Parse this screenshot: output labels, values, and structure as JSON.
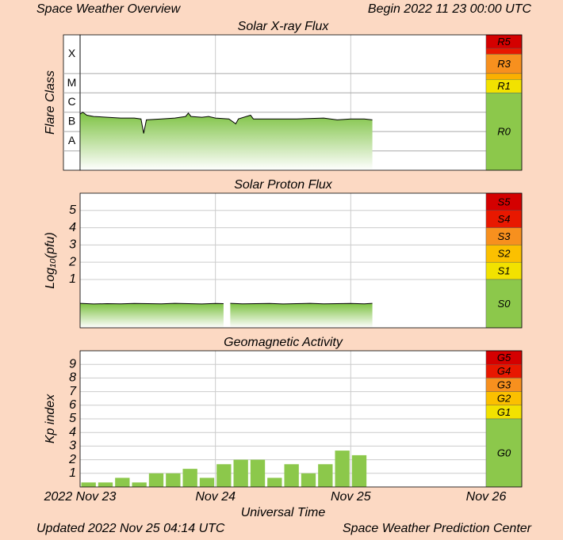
{
  "header": {
    "title": "Space Weather Overview",
    "begin": "Begin 2022 11 23 00:00 UTC"
  },
  "footer": {
    "updated": "Updated 2022 Nov 25 04:14 UTC",
    "source": "Space Weather Prediction Center"
  },
  "chart_data": [
    {
      "type": "line",
      "title": "Solar X-ray Flux",
      "ylabel": "Flare Class",
      "log_scale": true,
      "ylim": [
        1e-09,
        0.01
      ],
      "xlim": [
        0,
        3
      ],
      "color": "#000000",
      "fill_color": "#7dc242",
      "flare_classes": [
        {
          "label": "A",
          "from": 1e-08,
          "to": 1e-07
        },
        {
          "label": "B",
          "from": 1e-07,
          "to": 1e-06
        },
        {
          "label": "C",
          "from": 1e-06,
          "to": 1e-05
        },
        {
          "label": "M",
          "from": 1e-05,
          "to": 0.0001
        },
        {
          "label": "X",
          "from": 0.0001,
          "to": 0.01
        }
      ],
      "scale": [
        {
          "label": "R5",
          "from": 0.002,
          "to": 0.01,
          "color": "#d40000"
        },
        {
          "from": 0.001,
          "to": 0.002,
          "color": "#e81800"
        },
        {
          "label": "R3",
          "from": 0.0001,
          "to": 0.001,
          "color": "#f7901e"
        },
        {
          "from": 5e-05,
          "to": 0.0001,
          "color": "#fbb000"
        },
        {
          "label": "R1",
          "from": 1e-05,
          "to": 5e-05,
          "color": "#f2e200"
        },
        {
          "label": "R0",
          "from": 1e-09,
          "to": 1e-05,
          "color": "#8cc84b"
        }
      ],
      "x": [
        0,
        0.02,
        0.05,
        0.1,
        0.2,
        0.3,
        0.4,
        0.45,
        0.47,
        0.49,
        0.6,
        0.7,
        0.78,
        0.8,
        0.82,
        0.9,
        0.95,
        1.0,
        1.1,
        1.15,
        1.17,
        1.26,
        1.28,
        1.4,
        1.6,
        1.8,
        1.9,
        2.0,
        2.1,
        2.16
      ],
      "values": [
        8e-07,
        1e-06,
        7e-07,
        6e-07,
        5.5e-07,
        5e-07,
        5e-07,
        4.5e-07,
        8e-08,
        4e-07,
        4.5e-07,
        5e-07,
        6e-07,
        9e-07,
        6e-07,
        5.5e-07,
        6e-07,
        5e-07,
        4.5e-07,
        2.5e-07,
        4.5e-07,
        7e-07,
        4.5e-07,
        4.5e-07,
        4.5e-07,
        5e-07,
        4e-07,
        4.5e-07,
        4.5e-07,
        4e-07
      ]
    },
    {
      "type": "line",
      "title": "Solar Proton Flux",
      "ylabel": "Log₁₀(pfu)",
      "ylim": [
        -1.8,
        6
      ],
      "yticks": [
        1,
        2,
        3,
        4,
        5
      ],
      "xlim": [
        0,
        3
      ],
      "color": "#000000",
      "fill_color": "#7dc242",
      "scale": [
        {
          "label": "S5",
          "from": 5,
          "to": 6,
          "color": "#d40000"
        },
        {
          "label": "S4",
          "from": 4,
          "to": 5,
          "color": "#e81800"
        },
        {
          "label": "S3",
          "from": 3,
          "to": 4,
          "color": "#f7901e"
        },
        {
          "label": "S2",
          "from": 2,
          "to": 3,
          "color": "#fbc000"
        },
        {
          "label": "S1",
          "from": 1,
          "to": 2,
          "color": "#f2e200"
        },
        {
          "label": "S0",
          "from": -1.8,
          "to": 1,
          "color": "#8cc84b"
        }
      ],
      "x": [
        0,
        0.1,
        0.2,
        0.3,
        0.4,
        0.5,
        0.6,
        0.7,
        0.8,
        0.9,
        1.0,
        1.06,
        1.08,
        1.11,
        1.2,
        1.3,
        1.4,
        1.5,
        1.6,
        1.7,
        1.8,
        1.9,
        2.0,
        2.1,
        2.16
      ],
      "values": [
        -0.38,
        -0.42,
        -0.4,
        -0.41,
        -0.39,
        -0.4,
        -0.41,
        -0.38,
        -0.4,
        -0.42,
        -0.39,
        -0.4,
        null,
        -0.38,
        -0.41,
        -0.4,
        -0.39,
        -0.42,
        -0.4,
        -0.38,
        -0.41,
        -0.4,
        -0.39,
        -0.41,
        -0.38
      ]
    },
    {
      "type": "histogram",
      "title": "Geomagnetic Activity",
      "ylabel": "Kp index",
      "xlabel": "Universal Time",
      "ylim": [
        0,
        10
      ],
      "yticks": [
        1,
        2,
        3,
        4,
        5,
        6,
        7,
        8,
        9
      ],
      "xlim": [
        0,
        3
      ],
      "xticks": [
        {
          "value": 0,
          "label": "2022 Nov 23"
        },
        {
          "value": 1,
          "label": "Nov 24"
        },
        {
          "value": 2,
          "label": "Nov 25"
        },
        {
          "value": 3,
          "label": "Nov 26"
        }
      ],
      "color": "#8cc84b",
      "scale": [
        {
          "label": "G5",
          "from": 9,
          "to": 10,
          "color": "#d40000"
        },
        {
          "label": "G4",
          "from": 8,
          "to": 9,
          "color": "#e81800"
        },
        {
          "label": "G3",
          "from": 7,
          "to": 8,
          "color": "#f7901e"
        },
        {
          "label": "G2",
          "from": 6,
          "to": 7,
          "color": "#fbc000"
        },
        {
          "label": "G1",
          "from": 5,
          "to": 6,
          "color": "#f2e200"
        },
        {
          "label": "G0",
          "from": 0,
          "to": 5,
          "color": "#8cc84b"
        }
      ],
      "bins": [
        0,
        0.125,
        0.25,
        0.375,
        0.5,
        0.625,
        0.75,
        0.875,
        1,
        1.125,
        1.25,
        1.375,
        1.5,
        1.625,
        1.75,
        1.875,
        2,
        2.125
      ],
      "values": [
        0.33,
        0.33,
        0.67,
        0.33,
        1,
        1,
        1.33,
        0.67,
        1.67,
        2,
        2,
        0.67,
        1.67,
        1,
        1.67,
        2.67,
        2.33
      ]
    }
  ]
}
